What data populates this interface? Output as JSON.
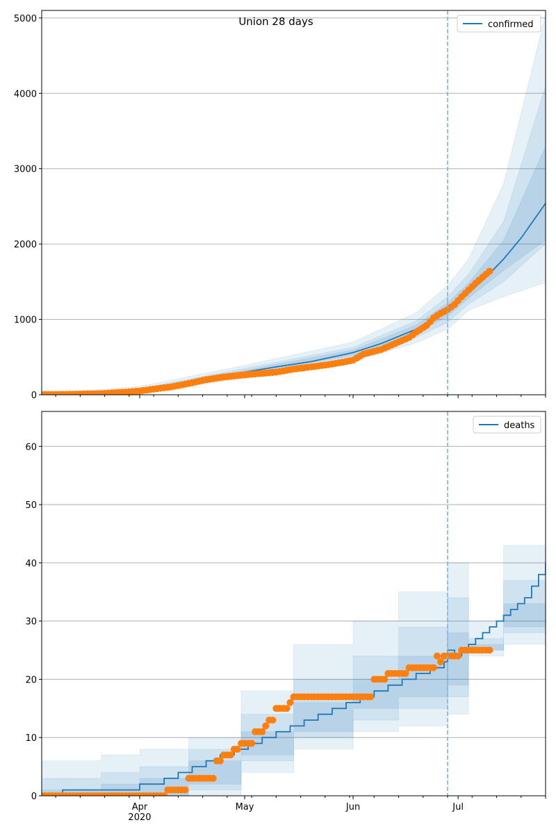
{
  "chart_data": [
    {
      "type": "line",
      "title": "Union 28 days",
      "xlabel": "",
      "ylabel": "",
      "x_unit": "days since 2020-03-01",
      "xlim": [
        3,
        147
      ],
      "ylim": [
        0,
        5100
      ],
      "yticks": [
        0,
        1000,
        2000,
        3000,
        4000,
        5000
      ],
      "ytick_labels": [
        "0",
        "1000",
        "2000",
        "3000",
        "4000",
        "5000"
      ],
      "xticks": [
        31,
        61,
        92,
        122
      ],
      "xtick_labels": [
        "Apr\n2020",
        "May",
        "Jun",
        "Jul"
      ],
      "grid": true,
      "legend": {
        "position": "top-right",
        "entries": [
          "confirmed"
        ]
      },
      "forecast_start_day": 119,
      "colors": {
        "line": "#1f77b4",
        "observed": "#ff7f0e",
        "band": "#1f77b4",
        "vline": "#7fb2d9"
      },
      "series": [
        {
          "name": "confirmed",
          "kind": "median",
          "x": [
            3,
            10,
            20,
            31,
            40,
            50,
            61,
            70,
            80,
            92,
            100,
            110,
            119,
            125,
            130,
            135,
            140,
            147
          ],
          "y": [
            5,
            8,
            20,
            55,
            120,
            210,
            300,
            370,
            440,
            560,
            680,
            870,
            1130,
            1350,
            1560,
            1800,
            2080,
            2540
          ]
        },
        {
          "name": "confirmed-observed",
          "kind": "points",
          "x": [
            3,
            10,
            20,
            28,
            31,
            35,
            40,
            45,
            50,
            55,
            60,
            65,
            70,
            75,
            80,
            85,
            90,
            92,
            95,
            100,
            105,
            108,
            110,
            113,
            115,
            117,
            119,
            121,
            123,
            125,
            127,
            129,
            131
          ],
          "y": [
            3,
            5,
            15,
            38,
            50,
            75,
            105,
            150,
            200,
            235,
            260,
            280,
            300,
            340,
            370,
            400,
            440,
            460,
            540,
            600,
            700,
            760,
            830,
            920,
            1020,
            1080,
            1130,
            1200,
            1300,
            1390,
            1480,
            1560,
            1640
          ]
        },
        {
          "name": "band-outer",
          "kind": "band",
          "x": [
            3,
            31,
            61,
            92,
            110,
            119,
            125,
            135,
            147
          ],
          "lo": [
            0,
            25,
            220,
            440,
            690,
            870,
            1120,
            1300,
            1490
          ],
          "hi": [
            15,
            110,
            390,
            700,
            1090,
            1450,
            1800,
            2800,
            5050
          ]
        },
        {
          "name": "band-mid",
          "kind": "band",
          "x": [
            3,
            31,
            61,
            92,
            110,
            119,
            125,
            135,
            147
          ],
          "lo": [
            2,
            35,
            250,
            490,
            760,
            960,
            1200,
            1500,
            2000
          ],
          "hi": [
            10,
            80,
            350,
            630,
            980,
            1300,
            1600,
            2300,
            4100
          ]
        },
        {
          "name": "band-inner",
          "kind": "band",
          "x": [
            3,
            31,
            61,
            92,
            110,
            119,
            125,
            135,
            147
          ],
          "lo": [
            3,
            45,
            275,
            525,
            815,
            1040,
            1280,
            1650,
            2050
          ],
          "hi": [
            8,
            65,
            325,
            595,
            925,
            1220,
            1480,
            2050,
            3300
          ]
        }
      ]
    },
    {
      "type": "line",
      "title": "",
      "xlabel": "",
      "ylabel": "",
      "x_unit": "days since 2020-03-01",
      "xlim": [
        3,
        147
      ],
      "ylim": [
        0,
        66
      ],
      "yticks": [
        0,
        10,
        20,
        30,
        40,
        50,
        60
      ],
      "ytick_labels": [
        "0",
        "10",
        "20",
        "30",
        "40",
        "50",
        "60"
      ],
      "xticks": [
        31,
        61,
        92,
        122
      ],
      "xtick_labels": [
        "Apr\n2020",
        "May",
        "Jun",
        "Jul"
      ],
      "grid": true,
      "legend": {
        "position": "top-right",
        "entries": [
          "deaths"
        ]
      },
      "forecast_start_day": 119,
      "series": [
        {
          "name": "deaths",
          "kind": "median-step",
          "x": [
            3,
            9,
            31,
            38,
            42,
            46,
            50,
            54,
            58,
            62,
            66,
            70,
            74,
            78,
            82,
            86,
            90,
            94,
            98,
            102,
            106,
            110,
            114,
            118,
            119,
            121,
            123,
            125,
            127,
            129,
            131,
            133,
            135,
            137,
            139,
            141,
            143,
            145,
            147
          ],
          "y": [
            0,
            1,
            2,
            3,
            4,
            5,
            6,
            7,
            8,
            9,
            10,
            11,
            12,
            13,
            14,
            15,
            16,
            17,
            18,
            19,
            20,
            21,
            22,
            23,
            25,
            24,
            25,
            26,
            27,
            28,
            29,
            30,
            31,
            32,
            33,
            34,
            36,
            38,
            40
          ]
        },
        {
          "name": "deaths-observed",
          "kind": "points",
          "x": [
            3,
            10,
            20,
            30,
            39,
            41,
            43,
            45,
            47,
            49,
            51,
            53,
            55,
            57,
            58,
            60,
            62,
            64,
            66,
            67,
            68,
            70,
            72,
            74,
            75,
            77,
            80,
            85,
            90,
            95,
            98,
            100,
            102,
            104,
            106,
            108,
            110,
            112,
            114,
            116,
            117,
            118,
            119,
            121,
            123,
            125,
            127,
            129,
            131
          ],
          "y": [
            0,
            0,
            0,
            0,
            1,
            1,
            1,
            3,
            3,
            3,
            3,
            6,
            7,
            7,
            8,
            9,
            9,
            11,
            11,
            12,
            13,
            15,
            15,
            16,
            17,
            17,
            17,
            17,
            17,
            17,
            20,
            20,
            21,
            21,
            21,
            22,
            22,
            22,
            22,
            24,
            23,
            24,
            24,
            24,
            25,
            25,
            25,
            25,
            25
          ]
        },
        {
          "name": "band-outer",
          "kind": "band-step",
          "x": [
            3,
            20,
            31,
            45,
            60,
            75,
            92,
            105,
            119,
            125,
            135,
            147
          ],
          "lo": [
            0,
            0,
            0,
            0,
            4,
            8,
            11,
            12,
            14,
            24,
            26,
            27
          ],
          "hi": [
            6,
            7,
            8,
            10,
            18,
            26,
            30,
            35,
            40,
            30,
            43,
            66
          ]
        },
        {
          "name": "band-mid",
          "kind": "band-step",
          "x": [
            3,
            20,
            31,
            45,
            60,
            75,
            92,
            105,
            119,
            125,
            135,
            147
          ],
          "lo": [
            0,
            0,
            0,
            1,
            6,
            10,
            13,
            15,
            17,
            25,
            28,
            30
          ],
          "hi": [
            3,
            4,
            5,
            8,
            14,
            20,
            24,
            29,
            34,
            27,
            37,
            55
          ]
        },
        {
          "name": "band-inner",
          "kind": "band-step",
          "x": [
            3,
            20,
            31,
            45,
            60,
            75,
            92,
            105,
            119,
            125,
            135,
            147
          ],
          "lo": [
            0,
            0,
            0,
            2,
            7,
            11,
            15,
            17,
            19,
            25,
            29,
            33
          ],
          "hi": [
            1,
            2,
            3,
            6,
            11,
            16,
            20,
            24,
            28,
            26,
            33,
            47
          ]
        }
      ]
    }
  ]
}
